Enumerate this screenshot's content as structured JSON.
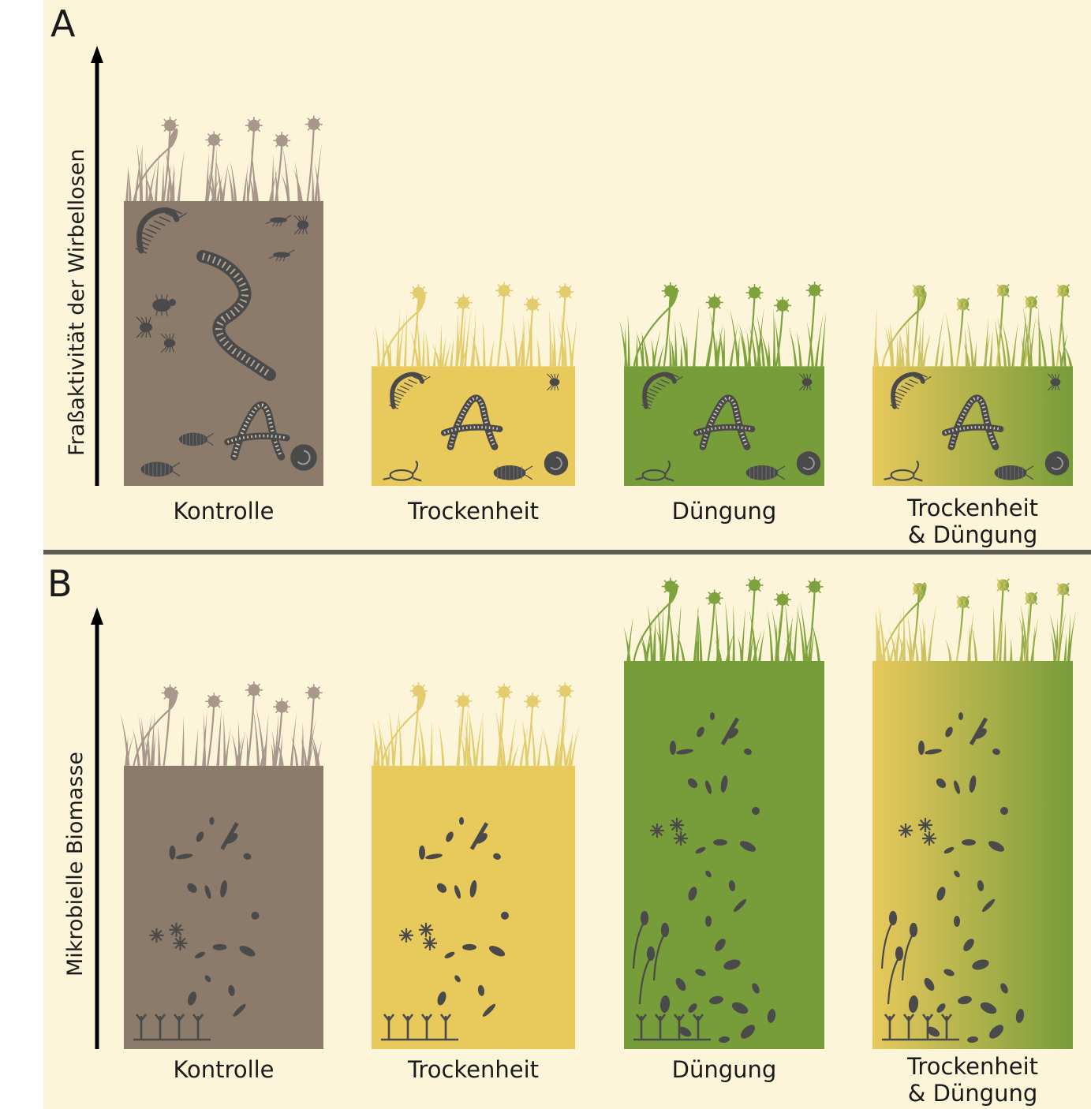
{
  "panels": [
    {
      "letter": "A",
      "axis_label": "Fraßaktivität der Wirbellosen",
      "levels": [
        1.0,
        0.42,
        0.42,
        0.42
      ],
      "treatments": [
        {
          "line1": "Kontrolle",
          "line2": ""
        },
        {
          "line1": "Trockenheit",
          "line2": ""
        },
        {
          "line1": "Düngung",
          "line2": ""
        },
        {
          "line1": "Trockenheit",
          "line2": "& Düngung"
        }
      ]
    },
    {
      "letter": "B",
      "axis_label": "Mikrobielle Biomasse",
      "levels": [
        0.73,
        0.73,
        1.0,
        1.0
      ],
      "treatments": [
        {
          "line1": "Kontrolle",
          "line2": ""
        },
        {
          "line1": "Trockenheit",
          "line2": ""
        },
        {
          "line1": "Düngung",
          "line2": ""
        },
        {
          "line1": "Trockenheit",
          "line2": "& Düngung"
        }
      ]
    }
  ],
  "colors": {
    "background": "#fdf5d9",
    "divider": "#5e5a55",
    "control": "#8c7a6b",
    "drought": "#e8c95c",
    "fertilization": "#779c3a",
    "organism": "#4a4a4a",
    "grass_control": "#a8978a",
    "grass_drought": "#e2cc6e",
    "grass_fertilization": "#7ea33e"
  },
  "icons": {
    "fauna": [
      "centipede",
      "earthworm",
      "mite",
      "beetle",
      "woodlouse",
      "springtail",
      "pseudoscorpion",
      "snail"
    ],
    "microbes": [
      "bacteria",
      "fungal-spores",
      "fungal-hyphae"
    ]
  }
}
